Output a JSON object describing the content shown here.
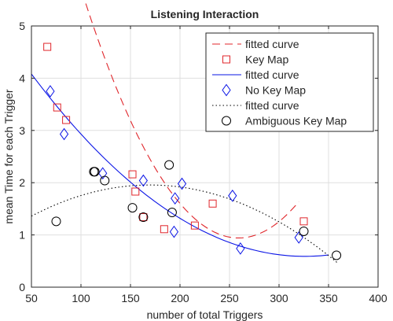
{
  "chart_data": {
    "type": "scatter",
    "title": "Listening Interaction",
    "xlabel": "number of total Triggers",
    "ylabel": "mean Time for each Trigger",
    "xlim": [
      50,
      400
    ],
    "ylim": [
      0,
      5
    ],
    "xticks": [
      50,
      100,
      150,
      200,
      250,
      300,
      350,
      400
    ],
    "yticks": [
      0,
      1,
      2,
      3,
      4,
      5
    ],
    "grid": true,
    "legend_position": "top-right",
    "series": [
      {
        "name": "Key Map",
        "marker": "square",
        "color": "#e0262b",
        "points": [
          [
            66,
            4.6
          ],
          [
            76,
            3.44
          ],
          [
            85,
            3.2
          ],
          [
            152,
            2.16
          ],
          [
            155,
            1.83
          ],
          [
            163,
            1.34
          ],
          [
            184,
            1.11
          ],
          [
            215,
            1.18
          ],
          [
            233,
            1.6
          ],
          [
            325,
            1.26
          ]
        ],
        "fit_name": "fitted curve",
        "fit_style": "dashed",
        "fit_coef": [
          13.6,
          -0.09767,
          0.0001884
        ],
        "fit_range": [
          66,
          320
        ]
      },
      {
        "name": "No Key Map",
        "marker": "diamond",
        "color": "#0a14e6",
        "points": [
          [
            69,
            3.75
          ],
          [
            83,
            2.93
          ],
          [
            122,
            2.18
          ],
          [
            163,
            2.04
          ],
          [
            194,
            1.06
          ],
          [
            195,
            1.7
          ],
          [
            202,
            1.98
          ],
          [
            253,
            1.75
          ],
          [
            261,
            0.74
          ],
          [
            320,
            0.95
          ]
        ],
        "fit_name": "fitted curve",
        "fit_style": "solid",
        "fit_coef": [
          5.46,
          -0.02987,
          4.58e-05
        ],
        "fit_range": [
          50,
          350
        ]
      },
      {
        "name": "Ambiguous Key Map",
        "marker": "circle",
        "color": "#000000",
        "points": [
          [
            75,
            1.26
          ],
          [
            113,
            2.21
          ],
          [
            114,
            2.21
          ],
          [
            124,
            2.04
          ],
          [
            152,
            1.52
          ],
          [
            163,
            1.34
          ],
          [
            189,
            2.34
          ],
          [
            192,
            1.43
          ],
          [
            325,
            1.07
          ],
          [
            358,
            0.61
          ]
        ],
        "fit_name": "fitted curve",
        "fit_style": "dotted",
        "fit_coef": [
          0.758,
          0.01412,
          -4.16e-05
        ],
        "fit_range": [
          50,
          360
        ]
      }
    ]
  },
  "legend_order": [
    {
      "series": 0,
      "kind": "fit"
    },
    {
      "series": 0,
      "kind": "marker"
    },
    {
      "series": 1,
      "kind": "fit"
    },
    {
      "series": 1,
      "kind": "marker"
    },
    {
      "series": 2,
      "kind": "fit"
    },
    {
      "series": 2,
      "kind": "marker"
    }
  ]
}
